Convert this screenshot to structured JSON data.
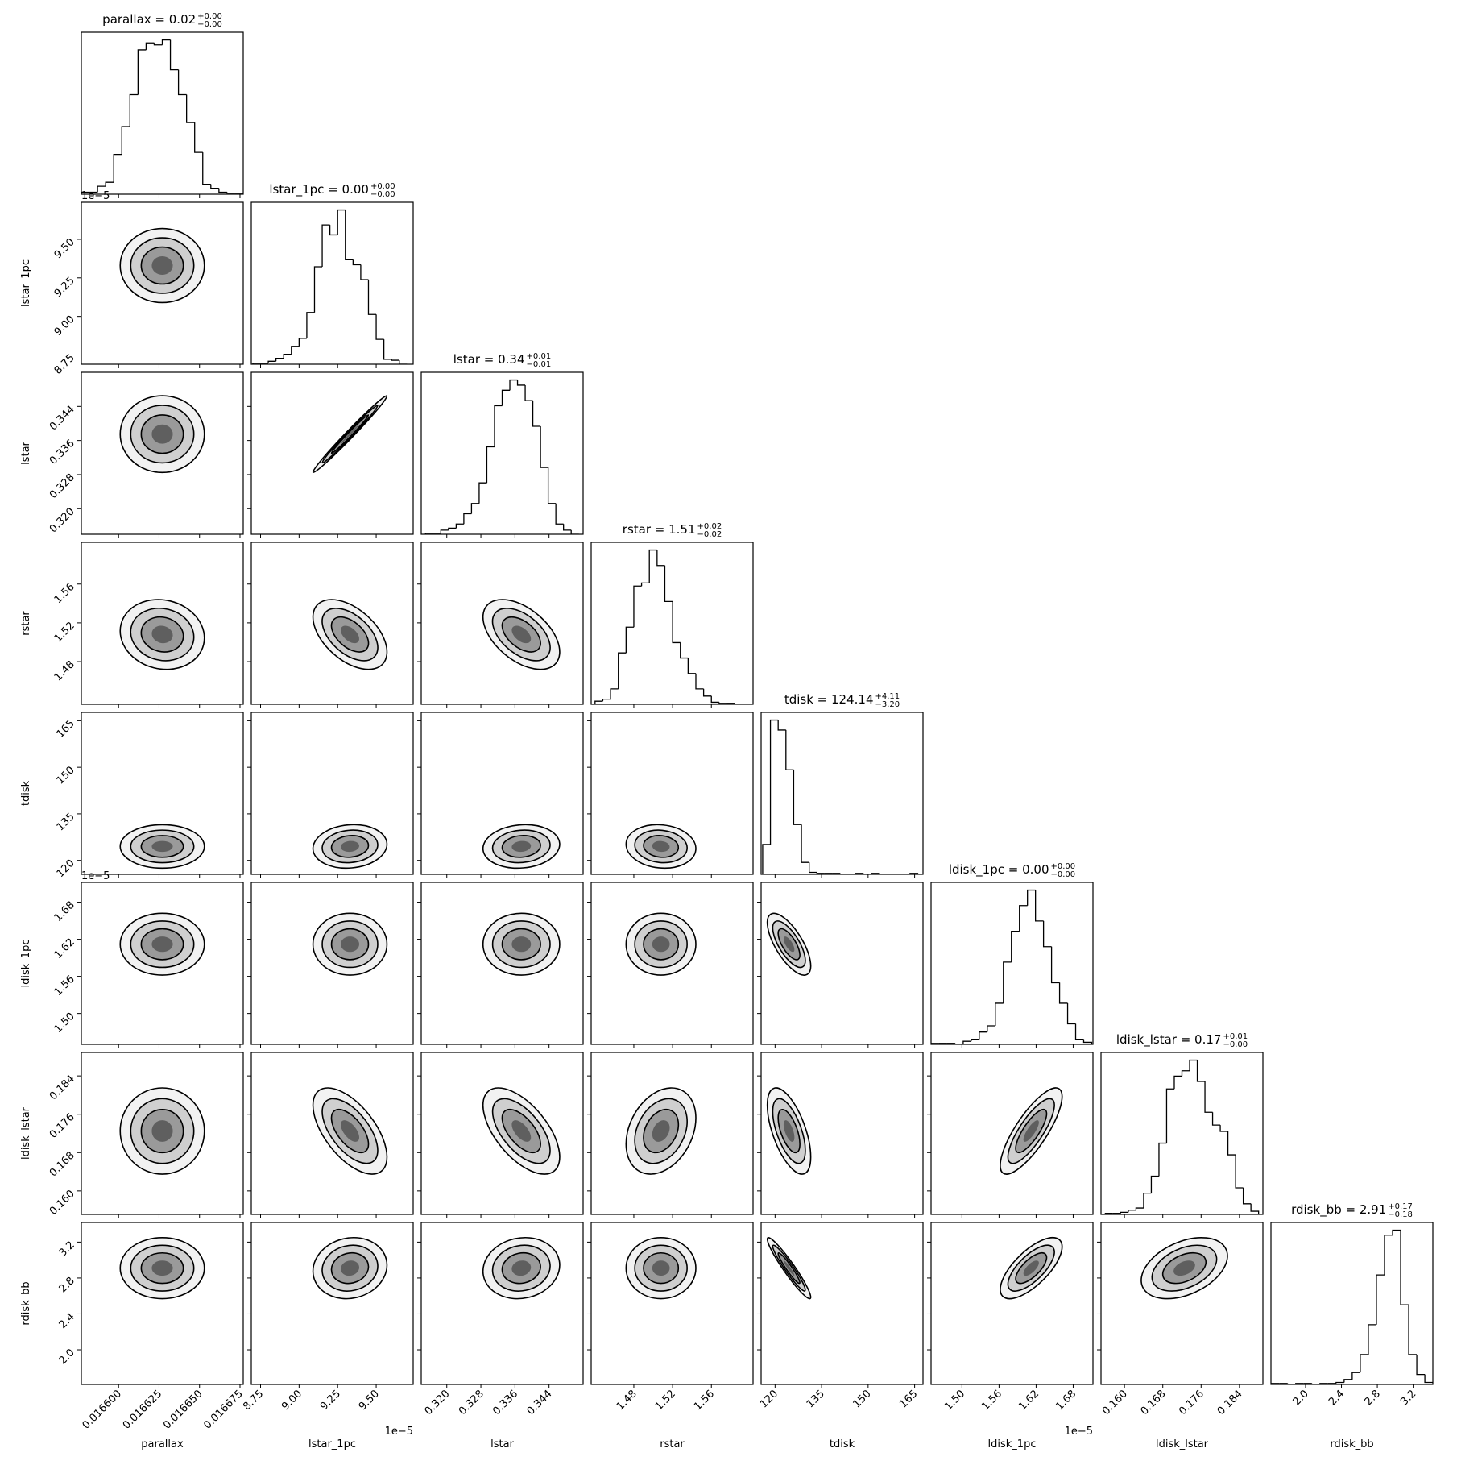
{
  "chart_data": {
    "type": "corner",
    "parameters": [
      {
        "name": "parallax",
        "title": "parallax = 0.02",
        "title_sup": "+0.00",
        "title_sub": "−0.00",
        "lim": [
          0.016577,
          0.016677
        ],
        "ticks": [
          {
            "value": 0.0166,
            "label": "0.016600"
          },
          0.016625,
          {
            "value": 0.01665,
            "label": "0.016650"
          },
          0.016675
        ],
        "center": 0.016627,
        "spread": 1.3e-05,
        "bins": [
          0.016577,
          0.016582,
          0.016587,
          0.016592,
          0.016597,
          0.016602,
          0.016607,
          0.016612,
          0.016617,
          0.016622,
          0.016627,
          0.016632,
          0.016637,
          0.016642,
          0.016647,
          0.016652,
          0.016657,
          0.016662,
          0.016667,
          0.016672,
          0.016677
        ],
        "counts": [
          2,
          2,
          8,
          12,
          40,
          68,
          100,
          145,
          152,
          150,
          155,
          125,
          100,
          72,
          42,
          10,
          6,
          2,
          1,
          1
        ]
      },
      {
        "name": "lstar_1pc",
        "title": "lstar_1pc = 0.00",
        "title_sup": "+0.00",
        "title_sub": "−0.00",
        "lim": [
          8.69,
          9.74
        ],
        "offset": "1e−5",
        "ticks": [
          8.75,
          {
            "value": 9,
            "label": "9.00"
          },
          9.25,
          {
            "value": 9.5,
            "label": "9.50"
          }
        ],
        "center": 9.33,
        "spread": 0.12,
        "bins": [
          8.7,
          8.75,
          8.8,
          8.85,
          8.9,
          8.95,
          9.0,
          9.05,
          9.1,
          9.15,
          9.2,
          9.25,
          9.3,
          9.35,
          9.4,
          9.45,
          9.5,
          9.55,
          9.6,
          9.65,
          9.7
        ],
        "counts": [
          1,
          1,
          3,
          6,
          10,
          18,
          26,
          52,
          98,
          140,
          130,
          155,
          105,
          100,
          85,
          50,
          25,
          5,
          4,
          0
        ]
      },
      {
        "name": "lstar",
        "title": "lstar = 0.34",
        "title_sup": "+0.01",
        "title_sub": "−0.01",
        "lim": [
          0.314,
          0.352
        ],
        "ticks": [
          {
            "value": 0.32,
            "label": "0.320"
          },
          0.328,
          0.336,
          0.344
        ],
        "center": 0.3375,
        "spread": 0.0045,
        "bins": [
          0.315,
          0.3168,
          0.3186,
          0.3204,
          0.3222,
          0.324,
          0.3258,
          0.3276,
          0.3294,
          0.3312,
          0.333,
          0.3348,
          0.3366,
          0.3384,
          0.3402,
          0.342,
          0.3438,
          0.3456,
          0.3474,
          0.3492,
          0.351
        ],
        "counts": [
          1,
          1,
          4,
          6,
          10,
          20,
          30,
          50,
          85,
          125,
          140,
          150,
          145,
          130,
          105,
          65,
          30,
          10,
          4,
          0
        ]
      },
      {
        "name": "rstar",
        "title": "rstar = 1.51",
        "title_sup": "+0.02",
        "title_sub": "−0.02",
        "lim": [
          1.436,
          1.603
        ],
        "ticks": [
          1.48,
          1.52,
          1.56
        ],
        "center": 1.508,
        "spread": 0.018,
        "bins": [
          1.44,
          1.448,
          1.456,
          1.464,
          1.472,
          1.48,
          1.488,
          1.496,
          1.504,
          1.512,
          1.52,
          1.528,
          1.536,
          1.544,
          1.552,
          1.56,
          1.568,
          1.576,
          1.584,
          1.592,
          1.6
        ],
        "counts": [
          3,
          5,
          15,
          50,
          75,
          115,
          118,
          150,
          135,
          100,
          60,
          45,
          30,
          15,
          8,
          2,
          1,
          1,
          0,
          0
        ]
      },
      {
        "name": "tdisk",
        "title": "tdisk = 124.14",
        "title_sup": "+4.11",
        "title_sub": "−3.20",
        "lim": [
          115.5,
          167.7
        ],
        "ticks": [
          120,
          135,
          150,
          165
        ],
        "center": 124.5,
        "spread": 3.5,
        "bins": [
          116,
          118.5,
          121,
          123.5,
          126,
          128.5,
          131,
          133.5,
          136,
          138.5,
          141,
          143.5,
          146,
          148.5,
          151,
          153.5,
          156,
          158.5,
          161,
          163.5,
          166
        ],
        "counts": [
          30,
          155,
          145,
          105,
          50,
          12,
          2,
          1,
          1,
          1,
          0,
          0,
          1,
          0,
          1,
          0,
          0,
          0,
          0,
          1
        ]
      },
      {
        "name": "ldisk_1pc",
        "title": "ldisk_1pc = 0.00",
        "title_sup": "+0.00",
        "title_sub": "−0.00",
        "lim": [
          1.45,
          1.712
        ],
        "offset": "1e−5",
        "ticks": [
          {
            "value": 1.5,
            "label": "1.50"
          },
          1.56,
          1.62,
          1.68
        ],
        "center": 1.612,
        "spread": 0.025,
        "bins": [
          1.45,
          1.463,
          1.476,
          1.489,
          1.502,
          1.515,
          1.528,
          1.541,
          1.554,
          1.567,
          1.58,
          1.593,
          1.606,
          1.619,
          1.632,
          1.645,
          1.658,
          1.671,
          1.684,
          1.697,
          1.71
        ],
        "counts": [
          1,
          1,
          1,
          0,
          3,
          5,
          12,
          18,
          40,
          80,
          110,
          135,
          150,
          120,
          95,
          60,
          40,
          20,
          5,
          2
        ]
      },
      {
        "name": "ldisk_lstar",
        "title": "ldisk_lstar = 0.17",
        "title_sup": "+0.01",
        "title_sub": "−0.00",
        "lim": [
          0.1551,
          0.1889
        ],
        "ticks": [
          {
            "value": 0.16,
            "label": "0.160"
          },
          0.168,
          0.176,
          0.184
        ],
        "center": 0.1725,
        "spread": 0.0045,
        "bins": [
          0.156,
          0.1576,
          0.1592,
          0.1608,
          0.1624,
          0.164,
          0.1656,
          0.1672,
          0.1688,
          0.1704,
          0.172,
          0.1736,
          0.1752,
          0.1768,
          0.1784,
          0.18,
          0.1816,
          0.1832,
          0.1848,
          0.1864,
          0.188
        ],
        "counts": [
          1,
          1,
          2,
          4,
          6,
          20,
          36,
          67,
          118,
          130,
          135,
          145,
          125,
          96,
          84,
          78,
          56,
          25,
          10,
          3
        ]
      },
      {
        "name": "rdisk_bb",
        "title": "rdisk_bb = 2.91",
        "title_sup": "+0.17",
        "title_sub": "−0.18",
        "lim": [
          1.614,
          3.419
        ],
        "ticks": [
          {
            "value": 2,
            "label": "2.0"
          },
          2.4,
          2.8,
          3.2
        ],
        "center": 2.91,
        "spread": 0.17,
        "bins": [
          1.62,
          1.71,
          1.8,
          1.89,
          1.98,
          2.07,
          2.16,
          2.25,
          2.34,
          2.43,
          2.52,
          2.61,
          2.7,
          2.79,
          2.88,
          2.97,
          3.06,
          3.15,
          3.24,
          3.33,
          3.42
        ],
        "counts": [
          1,
          1,
          0,
          1,
          1,
          0,
          1,
          1,
          2,
          5,
          12,
          30,
          60,
          110,
          150,
          155,
          80,
          30,
          10,
          2
        ]
      }
    ],
    "correlations": [
      [
        0
      ],
      [
        0,
        0.99
      ],
      [
        -0.1,
        -0.5,
        -0.5
      ],
      [
        0,
        0.1,
        0.1,
        -0.1
      ],
      [
        0,
        0,
        0,
        0,
        -0.7
      ],
      [
        0,
        -0.6,
        -0.6,
        0.3,
        -0.6,
        0.8
      ],
      [
        0,
        0.1,
        0.1,
        0,
        -0.95,
        0.7,
        0.4
      ]
    ],
    "color": "#000000"
  }
}
